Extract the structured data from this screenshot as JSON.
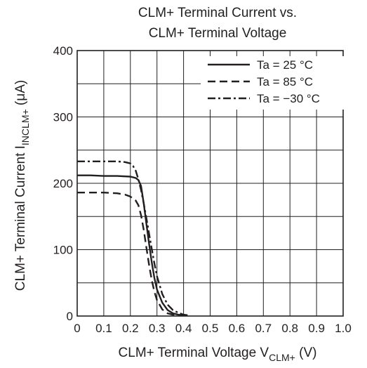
{
  "chart_data": {
    "type": "line",
    "title_line1": "CLM+ Terminal Current vs.",
    "title_line2": "CLM+ Terminal Voltage",
    "xlabel": {
      "main": "CLM+ Terminal Voltage  V",
      "sub": "CLM+",
      "unit": " (V)"
    },
    "ylabel": {
      "main": "CLM+ Terminal Current  I",
      "sub": "INCLM+",
      "unit": " (μA)"
    },
    "xlim": [
      0,
      1.0
    ],
    "ylim": [
      0,
      400
    ],
    "x_ticks": [
      0,
      0.1,
      0.2,
      0.3,
      0.4,
      0.5,
      0.6,
      0.7,
      0.8,
      0.9,
      1.0
    ],
    "x_tick_labels": [
      "0",
      "0.1",
      "0.2",
      "0.3",
      "0.4",
      "0.5",
      "0.6",
      "0.7",
      "0.8",
      "0.9",
      "1.0"
    ],
    "y_ticks": [
      0,
      100,
      200,
      300,
      400
    ],
    "y_tick_labels": [
      "0",
      "100",
      "200",
      "300",
      "400"
    ],
    "y_minor_grid": [
      50,
      150,
      250,
      350
    ],
    "grid": true,
    "legend_position": "top-right",
    "series": [
      {
        "name": "Ta = 25 °C",
        "line_style": "solid",
        "x": [
          0,
          0.05,
          0.1,
          0.15,
          0.2,
          0.22,
          0.23,
          0.24,
          0.25,
          0.26,
          0.27,
          0.28,
          0.29,
          0.3,
          0.32,
          0.34,
          0.36,
          0.38,
          0.4
        ],
        "y": [
          212,
          212,
          211,
          211,
          210,
          208,
          205,
          196,
          170,
          140,
          110,
          82,
          58,
          40,
          20,
          9,
          4,
          2,
          1
        ]
      },
      {
        "name": "Ta = 85 °C",
        "line_style": "dashed",
        "x": [
          0,
          0.05,
          0.1,
          0.15,
          0.18,
          0.2,
          0.22,
          0.23,
          0.24,
          0.25,
          0.26,
          0.27,
          0.28,
          0.29,
          0.3,
          0.32,
          0.34,
          0.36,
          0.38
        ],
        "y": [
          186,
          186,
          186,
          185,
          183,
          180,
          174,
          167,
          152,
          130,
          104,
          78,
          55,
          37,
          24,
          10,
          4,
          2,
          1
        ]
      },
      {
        "name": "Ta = −30 °C",
        "line_style": "dashdot",
        "x": [
          0,
          0.05,
          0.1,
          0.15,
          0.18,
          0.2,
          0.21,
          0.22,
          0.23,
          0.24,
          0.25,
          0.26,
          0.27,
          0.28,
          0.29,
          0.3,
          0.32,
          0.34,
          0.36,
          0.38,
          0.4,
          0.42
        ],
        "y": [
          233,
          233,
          233,
          233,
          232,
          230,
          226,
          219,
          206,
          190,
          170,
          148,
          125,
          102,
          80,
          60,
          33,
          17,
          9,
          5,
          2,
          1
        ]
      }
    ]
  }
}
